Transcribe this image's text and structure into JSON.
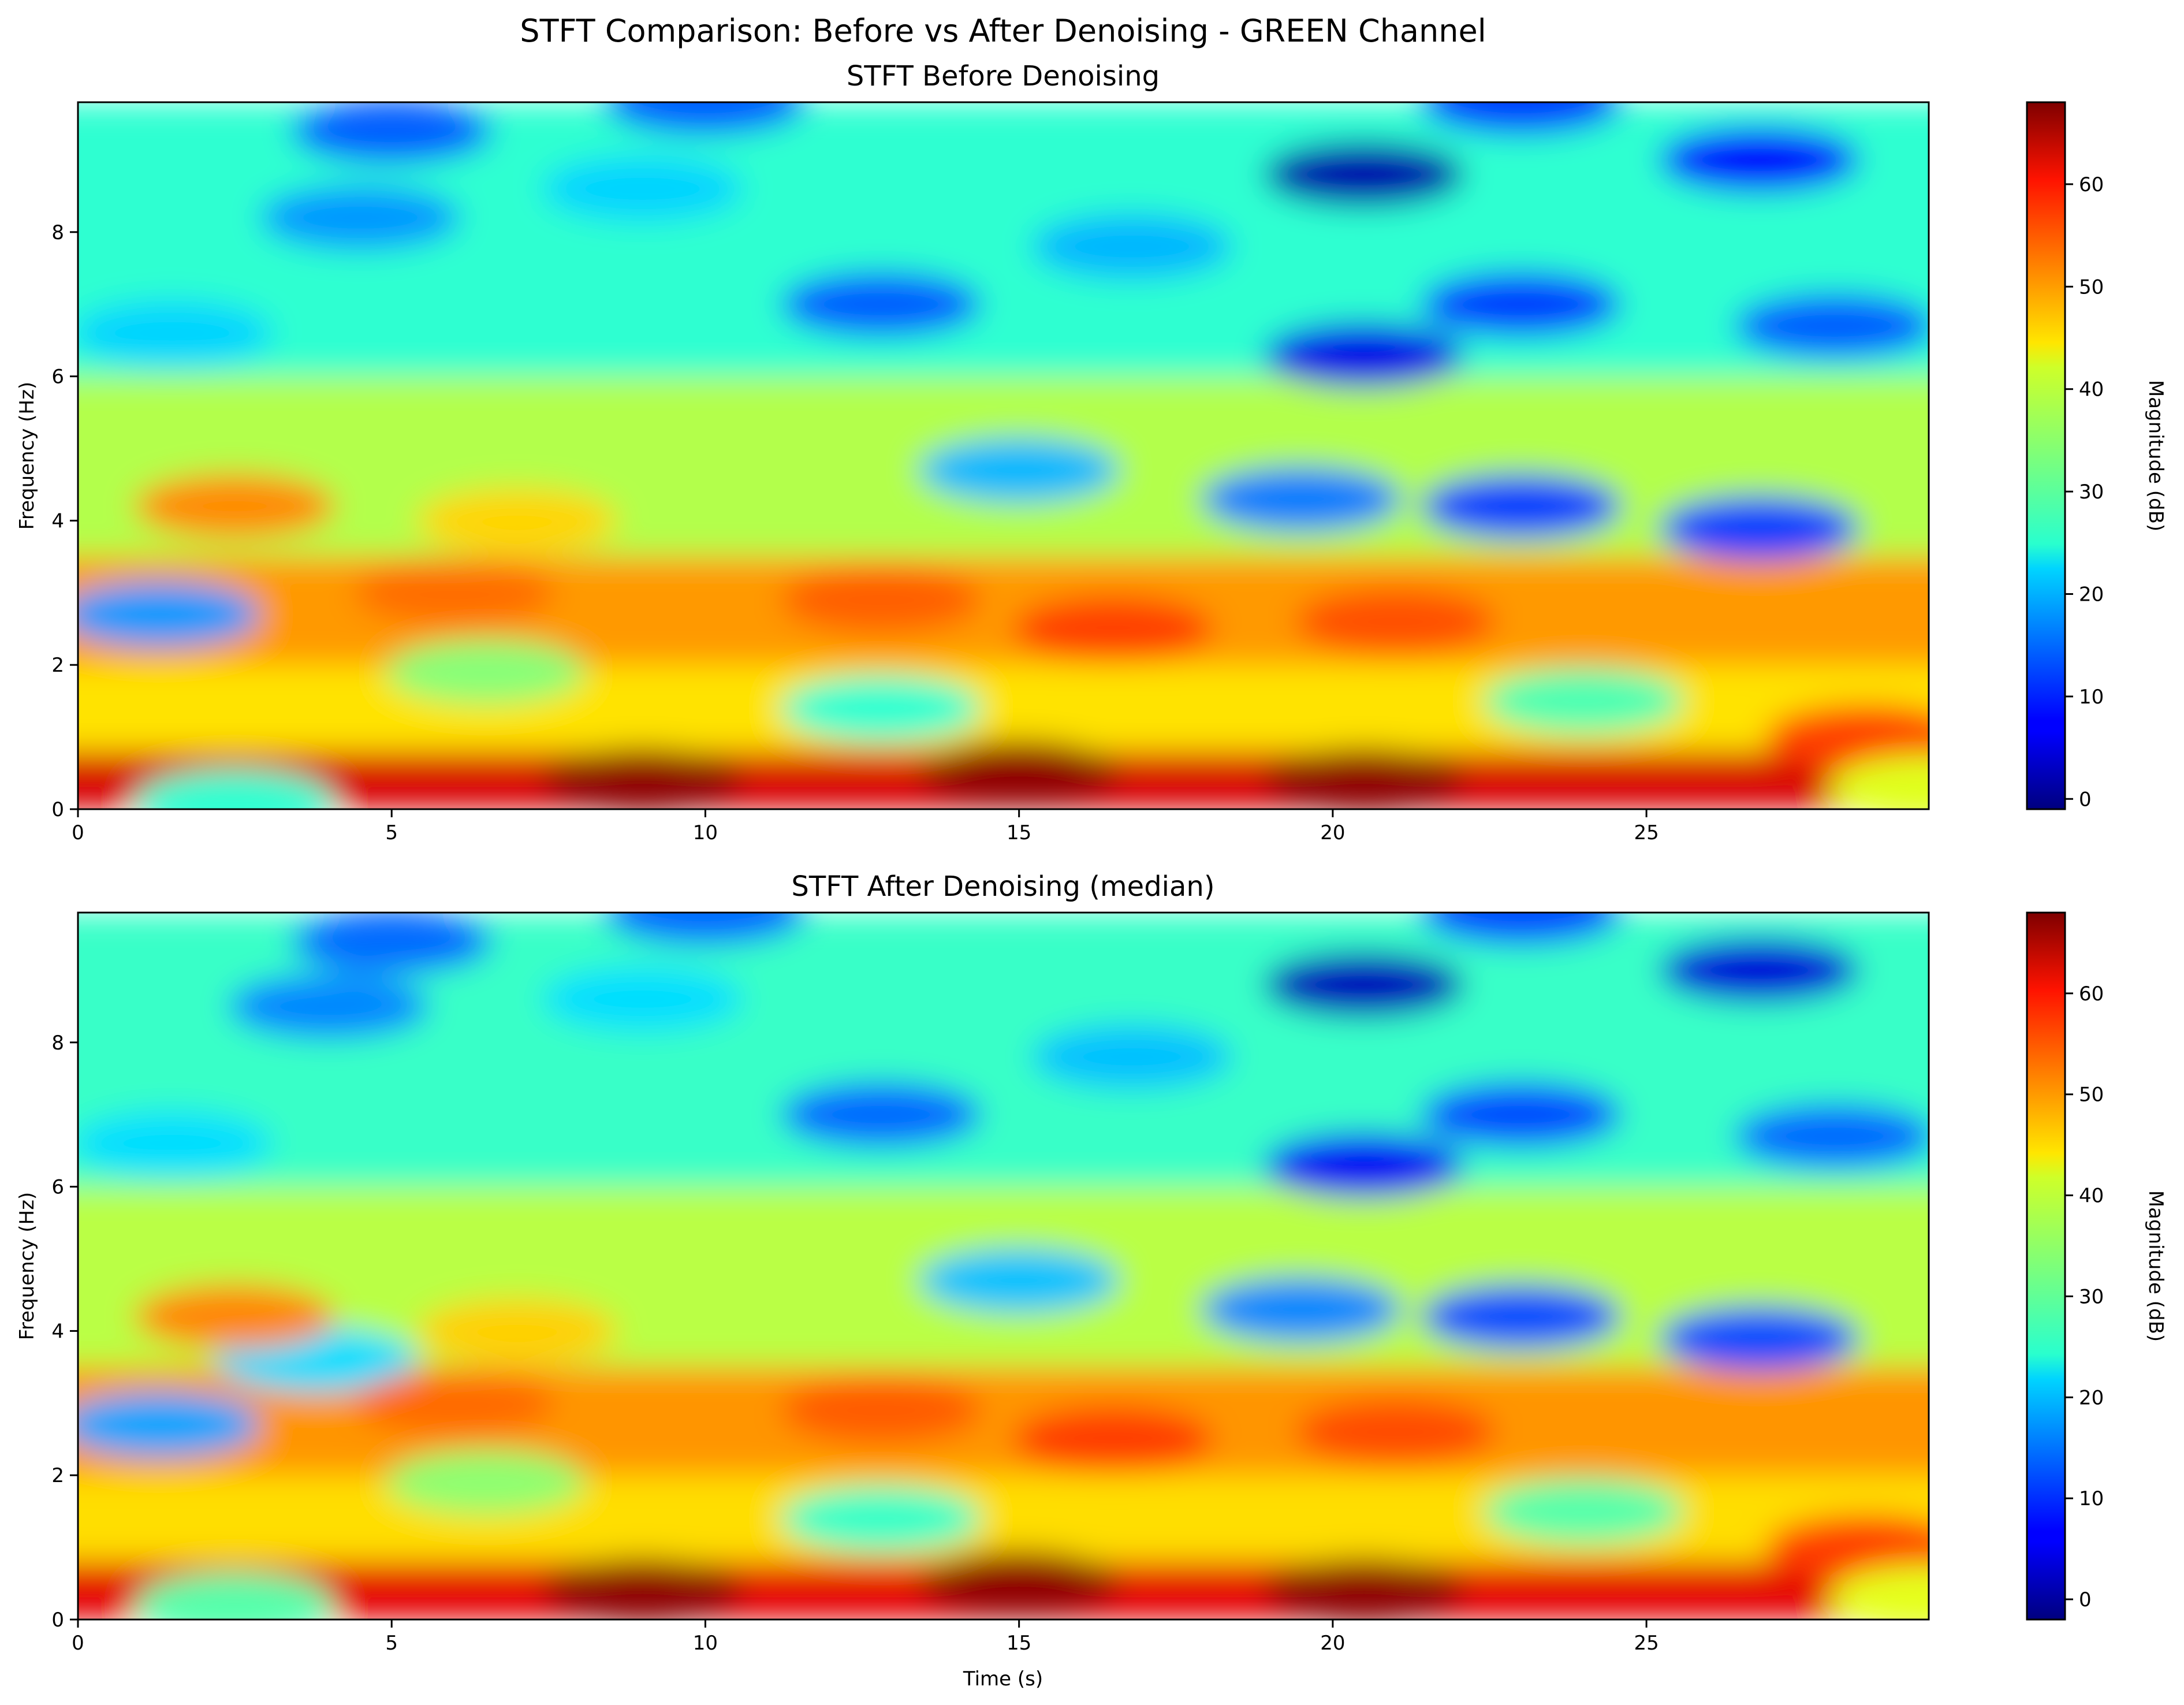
{
  "figure": {
    "suptitle": "STFT Comparison: Before vs After Denoising - GREEN Channel",
    "colormap": "jet"
  },
  "chart_data": [
    {
      "type": "heatmap",
      "title": "STFT Before Denoising",
      "xlabel": "",
      "ylabel": "Frequency (Hz)",
      "xlim": [
        0,
        29.5
      ],
      "ylim": [
        0,
        9.8
      ],
      "xticks": [
        "0",
        "5",
        "10",
        "15",
        "20",
        "25"
      ],
      "yticks": [
        "0",
        "2",
        "4",
        "6",
        "8"
      ],
      "colorbar": {
        "label": "Magnitude (dB)",
        "range": [
          -1,
          68
        ],
        "ticks": [
          "0",
          "10",
          "20",
          "30",
          "40",
          "50",
          "60"
        ]
      },
      "bands": [
        {
          "fmin": 0.0,
          "fmax": 0.8,
          "base_db": 62
        },
        {
          "fmin": 0.8,
          "fmax": 2.0,
          "base_db": 44
        },
        {
          "fmin": 2.0,
          "fmax": 3.5,
          "base_db": 49
        },
        {
          "fmin": 3.5,
          "fmax": 6.0,
          "base_db": 37
        },
        {
          "fmin": 6.0,
          "fmax": 9.8,
          "base_db": 28
        }
      ],
      "features": [
        {
          "t": 1.3,
          "f": 2.7,
          "db": 18
        },
        {
          "t": 2.5,
          "f": 0.1,
          "db": 28
        },
        {
          "t": 5.0,
          "f": 9.4,
          "db": 14
        },
        {
          "t": 4.5,
          "f": 8.2,
          "db": 18
        },
        {
          "t": 1.5,
          "f": 6.6,
          "db": 22
        },
        {
          "t": 9.0,
          "f": 8.6,
          "db": 22
        },
        {
          "t": 12.8,
          "f": 7.0,
          "db": 14
        },
        {
          "t": 15.0,
          "f": 4.7,
          "db": 20
        },
        {
          "t": 20.5,
          "f": 8.8,
          "db": 2
        },
        {
          "t": 20.5,
          "f": 6.3,
          "db": 6
        },
        {
          "t": 23.0,
          "f": 7.0,
          "db": 12
        },
        {
          "t": 23.0,
          "f": 4.2,
          "db": 12
        },
        {
          "t": 26.8,
          "f": 3.9,
          "db": 12
        },
        {
          "t": 26.8,
          "f": 9.0,
          "db": 8
        },
        {
          "t": 28.0,
          "f": 6.7,
          "db": 14
        },
        {
          "t": 10.0,
          "f": 9.8,
          "db": 14
        },
        {
          "t": 23.0,
          "f": 9.8,
          "db": 12
        },
        {
          "t": 16.8,
          "f": 7.8,
          "db": 20
        },
        {
          "t": 19.5,
          "f": 4.3,
          "db": 16
        },
        {
          "t": 7.0,
          "f": 4.0,
          "db": 45
        },
        {
          "t": 2.5,
          "f": 4.2,
          "db": 50
        },
        {
          "t": 9.0,
          "f": 0.4,
          "db": 67
        },
        {
          "t": 15.0,
          "f": 0.5,
          "db": 67
        },
        {
          "t": 20.5,
          "f": 0.4,
          "db": 67
        },
        {
          "t": 12.8,
          "f": 1.4,
          "db": 28
        },
        {
          "t": 24.0,
          "f": 1.5,
          "db": 30
        },
        {
          "t": 6.5,
          "f": 1.9,
          "db": 34
        },
        {
          "t": 16.5,
          "f": 2.5,
          "db": 55
        },
        {
          "t": 21.0,
          "f": 2.6,
          "db": 54
        },
        {
          "t": 28.5,
          "f": 1.0,
          "db": 55
        },
        {
          "t": 29.5,
          "f": 0.3,
          "db": 40
        },
        {
          "t": 12.8,
          "f": 2.9,
          "db": 53
        },
        {
          "t": 6.0,
          "f": 3.0,
          "db": 52
        }
      ]
    },
    {
      "type": "heatmap",
      "title": "STFT After Denoising (median)",
      "xlabel": "Time (s)",
      "ylabel": "Frequency (Hz)",
      "xlim": [
        0,
        29.5
      ],
      "ylim": [
        0,
        9.8
      ],
      "xticks": [
        "0",
        "5",
        "10",
        "15",
        "20",
        "25"
      ],
      "yticks": [
        "0",
        "2",
        "4",
        "6",
        "8"
      ],
      "colorbar": {
        "label": "Magnitude (dB)",
        "range": [
          -2,
          68
        ],
        "ticks": [
          "0",
          "10",
          "20",
          "30",
          "40",
          "50",
          "60"
        ]
      },
      "bands": [
        {
          "fmin": 0.0,
          "fmax": 0.8,
          "base_db": 61
        },
        {
          "fmin": 0.8,
          "fmax": 2.0,
          "base_db": 44
        },
        {
          "fmin": 2.0,
          "fmax": 3.5,
          "base_db": 49
        },
        {
          "fmin": 3.5,
          "fmax": 6.0,
          "base_db": 37
        },
        {
          "fmin": 6.0,
          "fmax": 9.8,
          "base_db": 28
        }
      ],
      "features": [
        {
          "t": 1.3,
          "f": 2.7,
          "db": 18
        },
        {
          "t": 2.5,
          "f": 0.2,
          "db": 30
        },
        {
          "t": 5.0,
          "f": 9.4,
          "db": 14
        },
        {
          "t": 4.0,
          "f": 8.5,
          "db": 16
        },
        {
          "t": 1.5,
          "f": 6.6,
          "db": 22
        },
        {
          "t": 9.0,
          "f": 8.6,
          "db": 22
        },
        {
          "t": 12.8,
          "f": 7.0,
          "db": 14
        },
        {
          "t": 15.0,
          "f": 4.7,
          "db": 20
        },
        {
          "t": 20.5,
          "f": 8.8,
          "db": 2
        },
        {
          "t": 20.5,
          "f": 6.3,
          "db": 6
        },
        {
          "t": 23.0,
          "f": 7.0,
          "db": 12
        },
        {
          "t": 23.0,
          "f": 4.2,
          "db": 12
        },
        {
          "t": 26.8,
          "f": 3.9,
          "db": 12
        },
        {
          "t": 26.8,
          "f": 9.0,
          "db": 4
        },
        {
          "t": 28.0,
          "f": 6.7,
          "db": 14
        },
        {
          "t": 10.0,
          "f": 9.8,
          "db": 14
        },
        {
          "t": 23.0,
          "f": 9.8,
          "db": 12
        },
        {
          "t": 16.8,
          "f": 7.8,
          "db": 20
        },
        {
          "t": 19.5,
          "f": 4.3,
          "db": 16
        },
        {
          "t": 3.8,
          "f": 3.6,
          "db": 22
        },
        {
          "t": 7.0,
          "f": 4.0,
          "db": 45
        },
        {
          "t": 2.5,
          "f": 4.2,
          "db": 50
        },
        {
          "t": 9.0,
          "f": 0.4,
          "db": 67
        },
        {
          "t": 15.0,
          "f": 0.5,
          "db": 67
        },
        {
          "t": 20.5,
          "f": 0.4,
          "db": 67
        },
        {
          "t": 12.8,
          "f": 1.4,
          "db": 28
        },
        {
          "t": 24.0,
          "f": 1.5,
          "db": 30
        },
        {
          "t": 6.5,
          "f": 1.9,
          "db": 34
        },
        {
          "t": 16.5,
          "f": 2.5,
          "db": 55
        },
        {
          "t": 21.0,
          "f": 2.6,
          "db": 54
        },
        {
          "t": 28.5,
          "f": 1.0,
          "db": 55
        },
        {
          "t": 29.5,
          "f": 0.3,
          "db": 40
        },
        {
          "t": 12.8,
          "f": 2.9,
          "db": 53
        },
        {
          "t": 6.0,
          "f": 3.0,
          "db": 52
        }
      ]
    }
  ]
}
